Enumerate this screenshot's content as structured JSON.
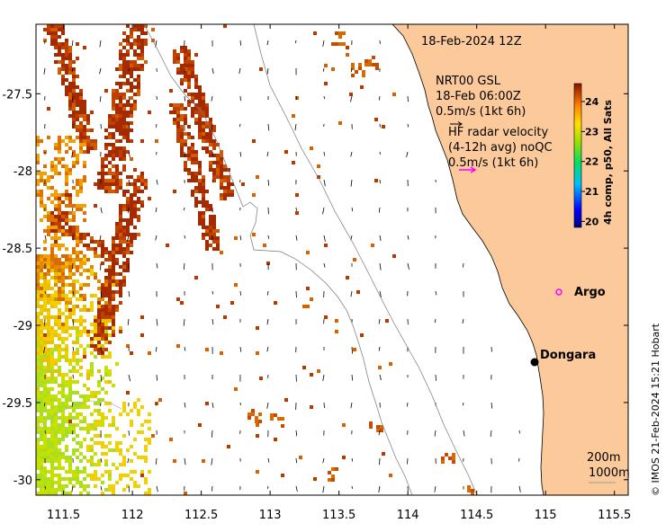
{
  "map": {
    "date_title": "18-Feb-2024 12Z",
    "model_label": [
      "NRT00 GSL",
      "18-Feb 06:00Z",
      "0.5m/s (1kt 6h)"
    ],
    "radar_label": [
      "HF radar velocity",
      "(4-12h avg) noQC",
      "0.5m/s (1kt 6h)"
    ],
    "credit": "© IMOS 21-Feb-2024 15:21 Hobart",
    "places": [
      {
        "name": "Argo",
        "lon": 115.05,
        "lat": -28.75,
        "marker": "circle-magenta"
      },
      {
        "name": "Dongara",
        "lon": 114.93,
        "lat": -29.25,
        "marker": "dot-black"
      }
    ],
    "depth_labels": [
      "200m",
      "1000m"
    ],
    "lon_range": [
      111.3,
      115.6
    ],
    "lat_range": [
      -30.1,
      -27.05
    ],
    "lon_ticks": [
      "111.5",
      "112",
      "112.5",
      "113",
      "113.5",
      "114",
      "114.5",
      "115",
      "115.5"
    ],
    "lat_ticks": [
      "-27.5",
      "-28",
      "-28.5",
      "-29",
      "-29.5",
      "-30"
    ],
    "colors": {
      "land": "#fbc99a",
      "magenta": "#ff00ff"
    }
  },
  "colorbar": {
    "label": "4h comp, p50, All Sats",
    "range": [
      19.8,
      24.6
    ],
    "ticks": [
      "20",
      "21",
      "22",
      "23",
      "24"
    ]
  }
}
